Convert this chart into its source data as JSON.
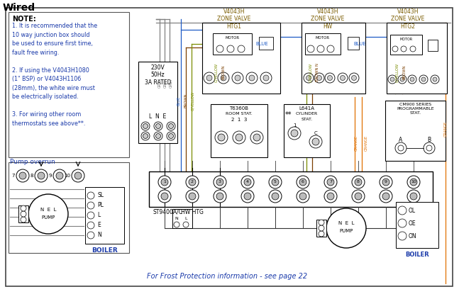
{
  "title": "Wired",
  "bg_color": "#ffffff",
  "note_title": "NOTE:",
  "note_body": "1. It is recommended that the\n10 way junction box should\nbe used to ensure first time,\nfault free wiring.\n\n2. If using the V4043H1080\n(1\" BSP) or V4043H1106\n(28mm), the white wire must\nbe electrically isolated.\n\n3. For wiring other room\nthermostats see above**.",
  "pump_overrun_label": "Pump overrun",
  "frost_text": "For Frost Protection information - see page 22",
  "valve1_label": "V4043H\nZONE VALVE\nHTG1",
  "valve2_label": "V4043H\nZONE VALVE\nHW",
  "valve3_label": "V4043H\nZONE VALVE\nHTG2",
  "power_label": "230V\n50Hz\n3A RATED",
  "lne_label": "L  N  E",
  "st9400_label": "ST9400A/C",
  "hw_htg_label": "HW HTG",
  "boiler_label": "BOILER",
  "pump_label": "PUMP",
  "cm900_label": "CM900 SERIES\nPROGRAMMABLE\nSTAT.",
  "t6360b_label": "T6360B\nROOM STAT.\n2  1  3",
  "l641a_label": "L641A\nCYLINDER\nSTAT.",
  "motor_label": "MOTOR",
  "blue_label": "BLUE",
  "wire_colors": {
    "grey": "#808080",
    "blue": "#1e5bc6",
    "brown": "#7B3F00",
    "orange": "#E07000",
    "gyellow": "#7a8c00",
    "black": "#111111",
    "dark_gray": "#404040"
  }
}
